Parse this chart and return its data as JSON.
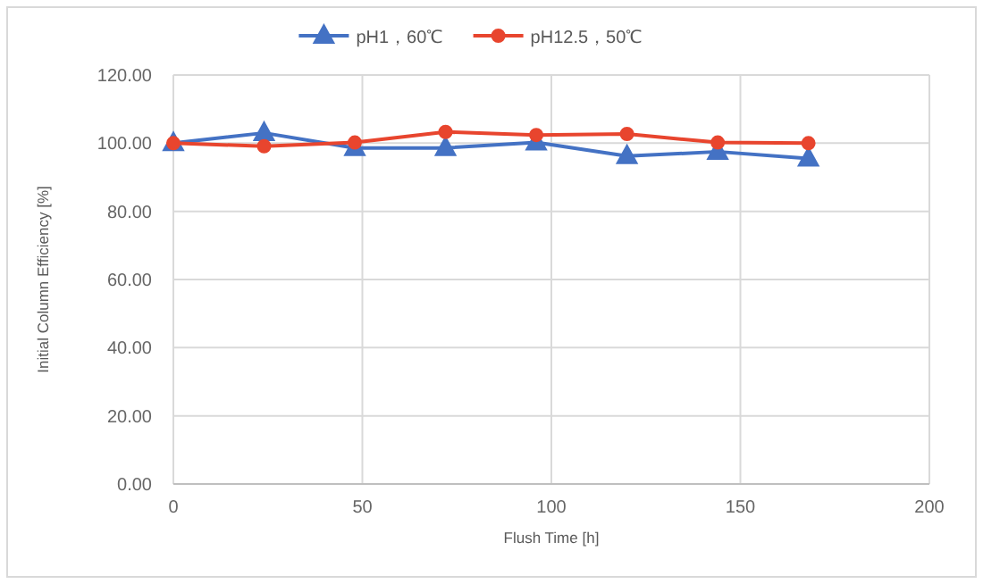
{
  "chart_data": {
    "type": "line",
    "xlabel": "Flush Time [h]",
    "ylabel": "Initial Column Efficiency [%]",
    "x": [
      0,
      24,
      48,
      72,
      96,
      120,
      144,
      168
    ],
    "series": [
      {
        "name": "pH1，60℃",
        "color": "#4472c4",
        "marker": "triangle",
        "values": [
          100,
          103,
          98.6,
          98.6,
          100.2,
          96.2,
          97.5,
          95.5
        ]
      },
      {
        "name": "pH12.5，50℃",
        "color": "#e8452e",
        "marker": "circle",
        "values": [
          100,
          99.1,
          100.2,
          103.3,
          102.4,
          102.7,
          100.2,
          100
        ]
      }
    ],
    "xlim": [
      0,
      200
    ],
    "xticks": [
      0,
      50,
      100,
      150,
      200
    ],
    "ylim": [
      0,
      120
    ],
    "yticks": [
      {
        "value": 0,
        "label": "0.00"
      },
      {
        "value": 20,
        "label": "20.00"
      },
      {
        "value": 40,
        "label": "40.00"
      },
      {
        "value": 60,
        "label": "60.00"
      },
      {
        "value": 80,
        "label": "80.00"
      },
      {
        "value": 100,
        "label": "100.00"
      },
      {
        "value": 120,
        "label": "120.00"
      }
    ],
    "grid": true,
    "legend": "top"
  }
}
